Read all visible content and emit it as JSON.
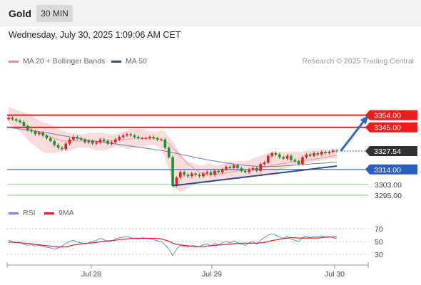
{
  "header": {
    "instrument": "Gold",
    "timeframe": "30 MIN",
    "datetime": "Wednesday, July 30, 2025 1:09:06 AM CET"
  },
  "legend": {
    "bb_label": "MA 20 + Bollinger Bands",
    "ma50_label": "MA 50",
    "credit": "Research © 2025 Trading Central",
    "rsi_label": "RSI",
    "rsi_ma_label": "9MA"
  },
  "colors": {
    "up_candle": "#e02020",
    "down_candle": "#1f8f2a",
    "bb_fill": "#f9d6d6",
    "ma20": "#e89a9a",
    "ma50": "#6b7fb3",
    "resistance": "#e81d1d",
    "pivot": "#2b5ebd",
    "support": "#7fcf7f",
    "trendline": "#2e4a8f",
    "rsi": "#6b8fdc",
    "rsi_ma": "#e02020",
    "last_price": "#333333"
  },
  "chart_data": [
    {
      "type": "candlestick",
      "x_tick_labels": [
        "Jul 28",
        "Jul 29",
        "Jul 30"
      ],
      "ylim": [
        3285,
        3365
      ],
      "price_levels": [
        {
          "label": "3354.00",
          "value": 3354.0,
          "kind": "resistance"
        },
        {
          "label": "3345.00",
          "value": 3345.0,
          "kind": "resistance"
        },
        {
          "label": "3327.54",
          "value": 3327.54,
          "kind": "last"
        },
        {
          "label": "3314.00",
          "value": 3314.0,
          "kind": "pivot"
        },
        {
          "label": "3303.00",
          "value": 3303.0,
          "kind": "support"
        },
        {
          "label": "3295.00",
          "value": 3295.0,
          "kind": "support"
        }
      ],
      "close": [
        3352,
        3351,
        3350,
        3349,
        3346,
        3343,
        3342,
        3340,
        3341,
        3339,
        3337,
        3335,
        3332,
        3330,
        3329,
        3333,
        3336,
        3338,
        3337,
        3336,
        3334,
        3335,
        3333,
        3334,
        3336,
        3335,
        3333,
        3334,
        3336,
        3338,
        3339,
        3340,
        3339,
        3338,
        3337,
        3337,
        3337,
        3338,
        3337,
        3336,
        3336,
        3330,
        3323,
        3302,
        3308,
        3312,
        3310,
        3309,
        3311,
        3310,
        3309,
        3311,
        3312,
        3310,
        3313,
        3312,
        3314,
        3316,
        3315,
        3317,
        3315,
        3313,
        3312,
        3314,
        3315,
        3313,
        3318,
        3319,
        3324,
        3326,
        3325,
        3323,
        3322,
        3324,
        3321,
        3320,
        3318,
        3323,
        3325,
        3324,
        3326,
        3325,
        3327,
        3326,
        3327,
        3328,
        3327.5
      ],
      "ma20": [
        3352,
        3351,
        3350,
        3349,
        3347,
        3345,
        3343,
        3342,
        3341,
        3340,
        3339,
        3338,
        3337,
        3336,
        3335,
        3335,
        3335,
        3335,
        3335,
        3335,
        3335,
        3335,
        3335,
        3334.5,
        3334.5,
        3334.5,
        3335,
        3335,
        3335.5,
        3336,
        3336,
        3336,
        3336.5,
        3337,
        3337,
        3337,
        3337,
        3337,
        3337,
        3336.5,
        3336,
        3335,
        3333,
        3330,
        3327,
        3324,
        3321,
        3318,
        3316,
        3314,
        3312,
        3311,
        3310,
        3310,
        3310,
        3310.5,
        3311,
        3311.5,
        3312,
        3312.5,
        3313,
        3313,
        3313.5,
        3314,
        3314,
        3314.5,
        3315,
        3315.5,
        3316,
        3317,
        3317.5,
        3318,
        3318.5,
        3319,
        3319.5,
        3320,
        3320,
        3320.5,
        3321,
        3321,
        3321.5,
        3322,
        3322.5,
        3323,
        3323.5,
        3324,
        3324.5
      ],
      "ma50": [
        3345,
        3344.6,
        3344.2,
        3343.8,
        3343.4,
        3343,
        3342.6,
        3342.2,
        3341.8,
        3341.4,
        3341,
        3340.5,
        3340,
        3339.5,
        3339,
        3338.5,
        3338,
        3337.5,
        3337,
        3336.5,
        3336,
        3335.6,
        3335.2,
        3334.8,
        3334.4,
        3334,
        3333.6,
        3333.2,
        3332.8,
        3332.4,
        3332,
        3331.6,
        3331.2,
        3330.8,
        3330.4,
        3330,
        3329.6,
        3329.2,
        3328.8,
        3328.4,
        3328,
        3327.5,
        3327,
        3326.4,
        3325.8,
        3325.2,
        3324.6,
        3324,
        3323.4,
        3322.8,
        3322.2,
        3321.7,
        3321.2,
        3320.7,
        3320.2,
        3319.7,
        3319.2,
        3318.8,
        3318.4,
        3318,
        3317.6,
        3317.3,
        3317,
        3316.8,
        3316.6,
        3316.4,
        3316.3,
        3316.2,
        3316.2,
        3316.2,
        3316.3,
        3316.4,
        3316.6,
        3316.8,
        3317,
        3317.2,
        3317.4,
        3317.6,
        3317.8,
        3318,
        3318.2,
        3318.4,
        3318.6,
        3318.8,
        3319,
        3319.2,
        3319.4
      ],
      "bb_upper": [
        3360,
        3359,
        3358,
        3357,
        3356,
        3355,
        3354,
        3352,
        3350,
        3349,
        3348,
        3347,
        3346,
        3344,
        3343,
        3342,
        3341,
        3341,
        3340,
        3340,
        3340,
        3341,
        3341,
        3341,
        3341,
        3341,
        3340,
        3340,
        3340,
        3341,
        3342,
        3343,
        3344,
        3344,
        3344,
        3344,
        3343,
        3342,
        3342,
        3342,
        3343,
        3342,
        3338,
        3335,
        3330,
        3326,
        3322,
        3320,
        3319,
        3318,
        3317,
        3317,
        3318,
        3318,
        3317,
        3317,
        3318,
        3319,
        3320,
        3320,
        3320,
        3320,
        3320,
        3321,
        3322,
        3323,
        3324,
        3325,
        3326,
        3327,
        3327,
        3327,
        3327,
        3327,
        3327,
        3327,
        3327,
        3327,
        3328,
        3328,
        3328,
        3328,
        3328,
        3328,
        3328,
        3328,
        3328
      ],
      "bb_lower": [
        3348,
        3346,
        3344,
        3342,
        3339,
        3336,
        3333,
        3331,
        3329,
        3327,
        3326,
        3326,
        3326,
        3327,
        3327,
        3328,
        3328,
        3329,
        3330,
        3330,
        3330,
        3330,
        3329,
        3328,
        3328,
        3328,
        3329,
        3330,
        3331,
        3331,
        3330,
        3329,
        3329,
        3330,
        3330,
        3330,
        3331,
        3332,
        3332,
        3331,
        3329,
        3322,
        3314,
        3302,
        3299,
        3298,
        3298,
        3300,
        3302,
        3303,
        3304,
        3305,
        3304,
        3304,
        3305,
        3306,
        3306,
        3306,
        3306,
        3307,
        3307,
        3307,
        3308,
        3308,
        3309,
        3309,
        3310,
        3310,
        3311,
        3311,
        3312,
        3313,
        3314,
        3315,
        3316,
        3317,
        3317,
        3318,
        3318,
        3319,
        3320,
        3320,
        3321,
        3321,
        3322,
        3322,
        3322
      ],
      "trendline": [
        {
          "x": 43,
          "y": 3302
        },
        {
          "x": 86,
          "y": 3316.5
        }
      ],
      "forecast_arrow": [
        {
          "x": 87,
          "y": 3327.5
        },
        {
          "x": 94,
          "y": 3353
        }
      ]
    },
    {
      "type": "line",
      "series": [
        {
          "name": "RSI"
        },
        {
          "name": "9MA"
        }
      ],
      "y_tick_labels": [
        "70",
        "50",
        "30"
      ],
      "ylim": [
        10,
        85
      ],
      "rsi": [
        52,
        50,
        48,
        49,
        46,
        44,
        45,
        43,
        44,
        42,
        41,
        40,
        38,
        40,
        43,
        47,
        50,
        52,
        49,
        48,
        46,
        48,
        50,
        52,
        55,
        53,
        50,
        51,
        54,
        56,
        57,
        58,
        56,
        55,
        54,
        56,
        55,
        54,
        53,
        51,
        50,
        45,
        38,
        28,
        38,
        44,
        42,
        41,
        44,
        43,
        42,
        45,
        46,
        43,
        47,
        45,
        48,
        50,
        48,
        51,
        48,
        46,
        44,
        48,
        50,
        46,
        52,
        56,
        60,
        62,
        60,
        57,
        55,
        58,
        54,
        52,
        50,
        56,
        58,
        56,
        58,
        57,
        59,
        57,
        58,
        56,
        54
      ],
      "rsi_ma": [
        49,
        49,
        48.5,
        48,
        47.5,
        47,
        46.5,
        45.5,
        45,
        44,
        43.5,
        43,
        42,
        41.5,
        41.5,
        42,
        43,
        44.5,
        45.5,
        46.5,
        47,
        47.5,
        48,
        48.5,
        49.5,
        50.5,
        51,
        51.5,
        52,
        53,
        53.5,
        54,
        54.5,
        55,
        55,
        55,
        55,
        55,
        55,
        54.5,
        54,
        52.5,
        50.5,
        47.5,
        45.5,
        44.5,
        44,
        43.5,
        42.5,
        42,
        42,
        42.5,
        43,
        43.5,
        44,
        44.5,
        45,
        45.5,
        46,
        46.5,
        47,
        47.5,
        47.5,
        47.5,
        47.5,
        47.5,
        48,
        48.5,
        50,
        51.5,
        52.5,
        53.5,
        54.5,
        55.5,
        56,
        56,
        55.5,
        55.5,
        55.5,
        55.5,
        55.5,
        55.5,
        56,
        56.5,
        57,
        57,
        57
      ]
    }
  ]
}
